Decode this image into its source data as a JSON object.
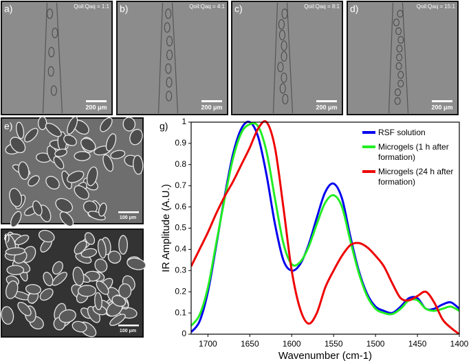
{
  "panels": [
    {
      "label": "a)",
      "text": "Qoil:Qaq = 1:1",
      "scale": "200 μm"
    },
    {
      "label": "b)",
      "text": "Qoil:Qaq = 4:1",
      "scale": "200 μm"
    },
    {
      "label": "c)",
      "text": "Qoil:Qaq = 8:1",
      "scale": "200 μm"
    },
    {
      "label": "d)",
      "text": "Qoil:Qaq = 15:1",
      "scale": "200 μm"
    },
    {
      "label": "e)",
      "scale": "100 μm"
    },
    {
      "label": "f)",
      "scale": "100 μm"
    }
  ],
  "chart_data": {
    "type": "line",
    "panel_label": "g)",
    "x_label": "Wavenumber (cm-1)",
    "y_label": "IR Amplitude (A.U.)",
    "x": [
      1720,
      1710,
      1700,
      1690,
      1680,
      1670,
      1660,
      1650,
      1640,
      1630,
      1620,
      1610,
      1600,
      1590,
      1580,
      1570,
      1560,
      1550,
      1540,
      1530,
      1520,
      1510,
      1500,
      1490,
      1480,
      1470,
      1460,
      1450,
      1440,
      1430,
      1420,
      1410,
      1400
    ],
    "series": [
      {
        "name": "RSF solution",
        "color": "#0000ee",
        "values": [
          0.01,
          0.06,
          0.2,
          0.42,
          0.65,
          0.85,
          0.97,
          1.0,
          0.93,
          0.75,
          0.52,
          0.35,
          0.3,
          0.33,
          0.42,
          0.55,
          0.67,
          0.71,
          0.64,
          0.46,
          0.3,
          0.19,
          0.13,
          0.11,
          0.1,
          0.13,
          0.17,
          0.17,
          0.12,
          0.12,
          0.14,
          0.15,
          0.12
        ]
      },
      {
        "name": "Microgels (1 h after formation)",
        "color": "#22ee22",
        "values": [
          0.04,
          0.09,
          0.22,
          0.43,
          0.64,
          0.83,
          0.95,
          0.99,
          0.98,
          0.86,
          0.64,
          0.43,
          0.33,
          0.34,
          0.41,
          0.52,
          0.62,
          0.655,
          0.6,
          0.44,
          0.29,
          0.18,
          0.12,
          0.1,
          0.095,
          0.12,
          0.16,
          0.16,
          0.12,
          0.11,
          0.12,
          0.13,
          0.11
        ]
      },
      {
        "name": "Microgels (24 h after formation)",
        "color": "#ee0000",
        "values": [
          0.32,
          0.4,
          0.48,
          0.57,
          0.65,
          0.72,
          0.8,
          0.88,
          0.97,
          1.0,
          0.88,
          0.6,
          0.3,
          0.12,
          0.05,
          0.1,
          0.22,
          0.3,
          0.37,
          0.42,
          0.43,
          0.41,
          0.37,
          0.32,
          0.24,
          0.17,
          0.16,
          0.18,
          0.2,
          0.15,
          0.07,
          0.03,
          0.0
        ]
      }
    ],
    "xlim": [
      1720,
      1400
    ],
    "xticks": [
      1700,
      1650,
      1600,
      1550,
      1500,
      1450,
      1400
    ],
    "ylim": [
      0,
      1
    ],
    "yticks": [
      0,
      0.1,
      0.2,
      0.3,
      0.4,
      0.5,
      0.6,
      0.7,
      0.8,
      0.9,
      1
    ],
    "legend": "upper-right"
  }
}
